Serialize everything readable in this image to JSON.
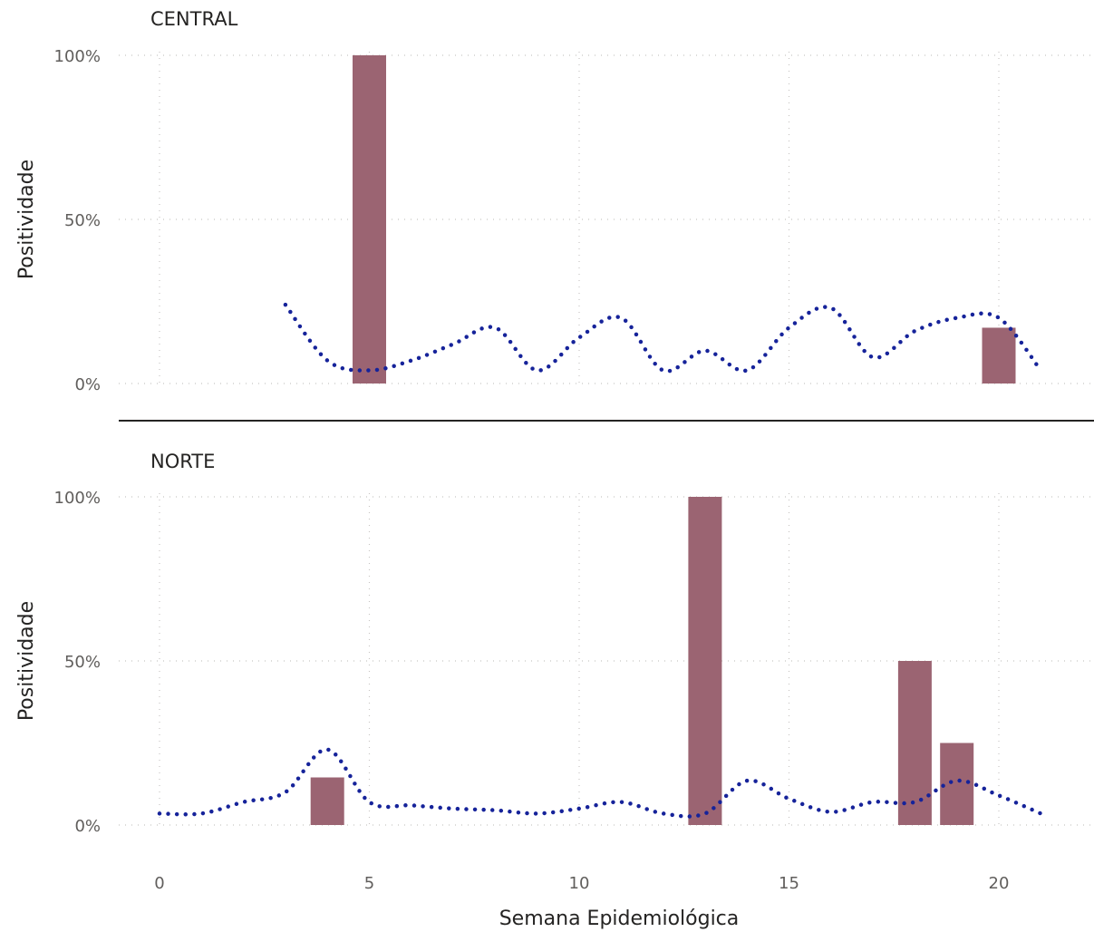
{
  "chart_data": {
    "type": "bar+line",
    "xlabel": "Semana Epidemiológica",
    "ylabel": "Positividade",
    "xlim": [
      0,
      22
    ],
    "x_ticks": [
      "0",
      "5",
      "10",
      "15",
      "20"
    ],
    "y_ticks": [
      "0%",
      "50%",
      "100%"
    ],
    "ylim": [
      0,
      100
    ],
    "colors": {
      "bars": "#9b6472",
      "line": "#16239a"
    },
    "grid": true,
    "panels": [
      {
        "title": "CENTRAL",
        "bars": {
          "x": [
            5,
            20
          ],
          "values": [
            100,
            17
          ]
        },
        "line": {
          "x": [
            3,
            4,
            5,
            6,
            7,
            8,
            9,
            10,
            11,
            12,
            13,
            14,
            15,
            16,
            17,
            18,
            19,
            20,
            21
          ],
          "values": [
            24,
            7,
            4,
            7,
            12,
            17,
            4,
            14,
            20,
            4,
            10,
            4,
            17,
            23,
            8,
            16,
            20,
            20,
            4
          ]
        }
      },
      {
        "title": "NORTE",
        "bars": {
          "x": [
            4,
            13,
            18,
            19
          ],
          "values": [
            14.5,
            100,
            50,
            25
          ]
        },
        "line": {
          "x": [
            0,
            1,
            2,
            3,
            4,
            5,
            6,
            7,
            8,
            9,
            10,
            11,
            12,
            13,
            14,
            15,
            16,
            17,
            18,
            19,
            20,
            21
          ],
          "values": [
            3.5,
            3.5,
            7,
            10,
            23,
            7,
            6,
            5,
            4.5,
            3.5,
            5,
            7,
            3.5,
            3.5,
            13.5,
            8,
            4,
            7,
            7,
            13.5,
            9,
            3.5
          ]
        }
      }
    ]
  }
}
